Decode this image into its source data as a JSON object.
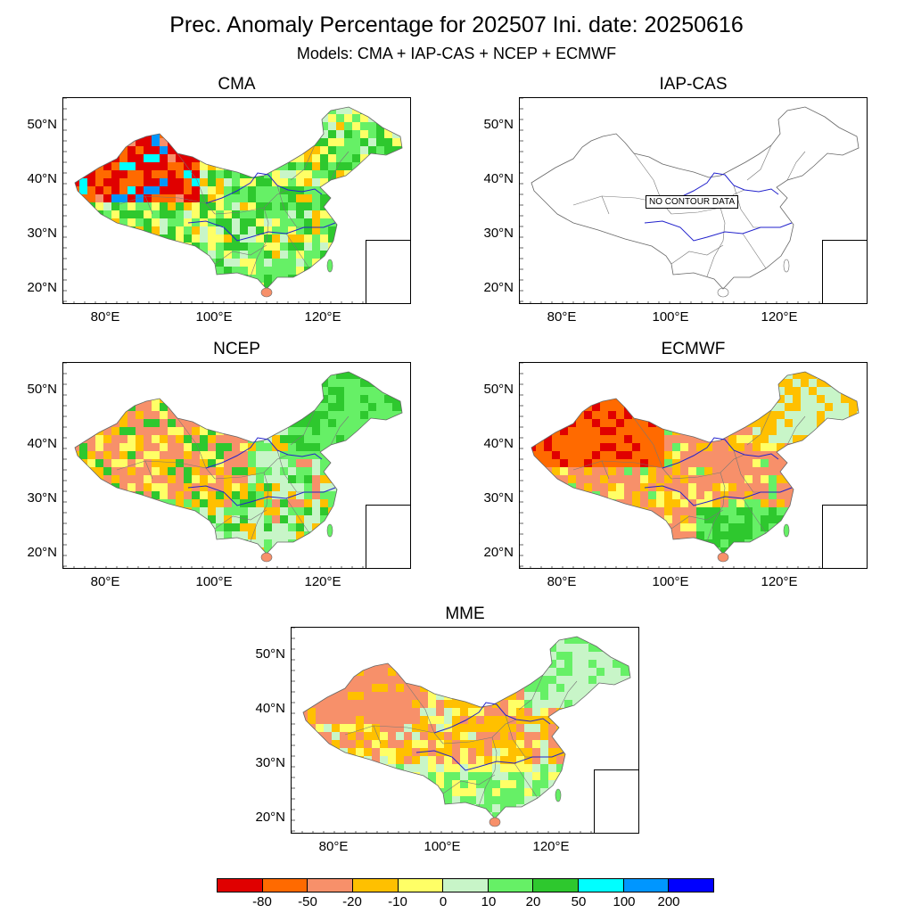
{
  "title": "Prec. Anomaly Percentage for 202507 Ini. date: 20250616",
  "subtitle": "Models: CMA + IAP-CAS + NCEP + ECMWF",
  "axes": {
    "lat_labels": [
      "50°N",
      "40°N",
      "30°N",
      "20°N"
    ],
    "lon_labels": [
      "80°E",
      "100°E",
      "120°E"
    ]
  },
  "panels": [
    {
      "name": "CMA",
      "pattern": "cma"
    },
    {
      "name": "IAP-CAS",
      "pattern": "none",
      "note": "NO CONTOUR DATA"
    },
    {
      "name": "NCEP",
      "pattern": "ncep"
    },
    {
      "name": "ECMWF",
      "pattern": "ecmwf"
    },
    {
      "name": "MME",
      "pattern": "mme"
    }
  ],
  "colorbar": {
    "colors": [
      "#e00000",
      "#ff6a00",
      "#f7906a",
      "#ffc000",
      "#ffff66",
      "#c8f5c8",
      "#66f066",
      "#2ec82e",
      "#00ffff",
      "#0096ff",
      "#0000ff"
    ],
    "labels": [
      "-80",
      "-50",
      "-20",
      "-10",
      "0",
      "10",
      "20",
      "50",
      "100",
      "200"
    ]
  }
}
